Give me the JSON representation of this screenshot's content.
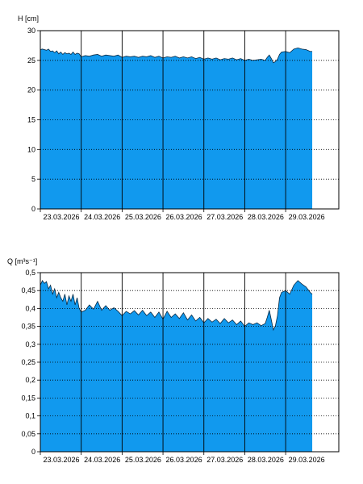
{
  "chart_data": [
    {
      "type": "area",
      "ylabel": "H [cm]",
      "xlabel": "",
      "ylim": [
        0,
        30
      ],
      "yticks": [
        0,
        5,
        10,
        15,
        20,
        25,
        30
      ],
      "xlim": [
        0,
        7.3
      ],
      "xticks": [
        0,
        1,
        2,
        3,
        4,
        5,
        6
      ],
      "xtick_labels": [
        "23.03.2026",
        "24.03.2026",
        "25.03.2026",
        "26.03.2026",
        "27.03.2026",
        "28.03.2026",
        "29.03.2026"
      ],
      "grid": "dotted-horizontal",
      "fill_color": "#1199ee",
      "x": [
        0,
        0.05,
        0.1,
        0.15,
        0.2,
        0.25,
        0.3,
        0.35,
        0.4,
        0.45,
        0.5,
        0.55,
        0.6,
        0.65,
        0.7,
        0.75,
        0.8,
        0.85,
        0.9,
        0.95,
        1.0,
        1.1,
        1.2,
        1.3,
        1.4,
        1.5,
        1.6,
        1.7,
        1.8,
        1.9,
        2.0,
        2.1,
        2.2,
        2.3,
        2.4,
        2.5,
        2.6,
        2.7,
        2.8,
        2.9,
        3.0,
        3.1,
        3.2,
        3.3,
        3.4,
        3.5,
        3.6,
        3.7,
        3.8,
        3.9,
        4.0,
        4.1,
        4.2,
        4.3,
        4.4,
        4.5,
        4.6,
        4.7,
        4.8,
        4.9,
        5.0,
        5.1,
        5.2,
        5.3,
        5.4,
        5.5,
        5.55,
        5.6,
        5.65,
        5.7,
        5.75,
        5.8,
        5.85,
        5.9,
        6.0,
        6.1,
        6.2,
        6.3,
        6.4,
        6.5,
        6.6,
        6.65
      ],
      "values": [
        26.8,
        26.9,
        26.8,
        26.7,
        26.9,
        26.5,
        26.6,
        26.3,
        26.6,
        26.1,
        26.4,
        26.0,
        26.3,
        26.1,
        26.2,
        26.0,
        26.4,
        26.0,
        26.2,
        26.1,
        25.6,
        25.8,
        25.7,
        25.9,
        26.0,
        25.7,
        25.9,
        25.8,
        25.7,
        25.9,
        25.5,
        25.7,
        25.6,
        25.7,
        25.5,
        25.7,
        25.6,
        25.8,
        25.5,
        25.7,
        25.4,
        25.6,
        25.5,
        25.7,
        25.4,
        25.6,
        25.4,
        25.6,
        25.3,
        25.5,
        25.2,
        25.4,
        25.2,
        25.4,
        25.1,
        25.3,
        25.2,
        25.4,
        25.1,
        25.3,
        25.0,
        25.2,
        25.0,
        25.1,
        25.2,
        25.0,
        25.5,
        25.9,
        25.3,
        24.6,
        24.8,
        25.2,
        26.0,
        26.4,
        26.5,
        26.3,
        26.9,
        27.1,
        26.9,
        26.8,
        26.5,
        26.5
      ]
    },
    {
      "type": "area",
      "ylabel": "Q [m³s⁻¹]",
      "xlabel": "",
      "ylim": [
        0,
        0.5
      ],
      "yticks": [
        0,
        0.05,
        0.1,
        0.15,
        0.2,
        0.25,
        0.3,
        0.35,
        0.4,
        0.45,
        0.5
      ],
      "ytick_labels": [
        "0",
        "0,05",
        "0,1",
        "0,15",
        "0,2",
        "0,25",
        "0,3",
        "0,35",
        "0,4",
        "0,45",
        "0,5"
      ],
      "xlim": [
        0,
        7.3
      ],
      "xticks": [
        0,
        1,
        2,
        3,
        4,
        5,
        6
      ],
      "xtick_labels": [
        "23.03.2026",
        "24.03.2026",
        "25.03.2026",
        "26.03.2026",
        "27.03.2026",
        "28.03.2026",
        "29.03.2026"
      ],
      "grid": "dotted-horizontal",
      "fill_color": "#1199ee",
      "x": [
        0,
        0.05,
        0.1,
        0.15,
        0.2,
        0.25,
        0.3,
        0.35,
        0.4,
        0.45,
        0.5,
        0.55,
        0.6,
        0.65,
        0.7,
        0.75,
        0.8,
        0.85,
        0.9,
        0.95,
        1.0,
        1.1,
        1.2,
        1.3,
        1.4,
        1.5,
        1.6,
        1.7,
        1.8,
        1.9,
        2.0,
        2.1,
        2.2,
        2.3,
        2.4,
        2.5,
        2.6,
        2.7,
        2.8,
        2.9,
        3.0,
        3.1,
        3.2,
        3.3,
        3.4,
        3.5,
        3.6,
        3.7,
        3.8,
        3.9,
        4.0,
        4.1,
        4.2,
        4.3,
        4.4,
        4.5,
        4.6,
        4.7,
        4.8,
        4.9,
        5.0,
        5.1,
        5.2,
        5.3,
        5.4,
        5.5,
        5.55,
        5.6,
        5.65,
        5.7,
        5.75,
        5.8,
        5.85,
        5.9,
        6.0,
        6.1,
        6.2,
        6.3,
        6.4,
        6.5,
        6.6,
        6.65
      ],
      "values": [
        0.465,
        0.478,
        0.47,
        0.475,
        0.455,
        0.465,
        0.44,
        0.455,
        0.43,
        0.445,
        0.43,
        0.42,
        0.44,
        0.41,
        0.435,
        0.42,
        0.44,
        0.41,
        0.43,
        0.4,
        0.39,
        0.395,
        0.41,
        0.398,
        0.42,
        0.395,
        0.408,
        0.395,
        0.402,
        0.392,
        0.38,
        0.392,
        0.385,
        0.394,
        0.382,
        0.395,
        0.38,
        0.39,
        0.375,
        0.39,
        0.37,
        0.392,
        0.375,
        0.385,
        0.372,
        0.388,
        0.368,
        0.382,
        0.365,
        0.375,
        0.36,
        0.372,
        0.362,
        0.37,
        0.358,
        0.372,
        0.36,
        0.368,
        0.355,
        0.365,
        0.35,
        0.36,
        0.355,
        0.36,
        0.352,
        0.358,
        0.375,
        0.395,
        0.368,
        0.34,
        0.352,
        0.38,
        0.43,
        0.445,
        0.45,
        0.44,
        0.465,
        0.478,
        0.468,
        0.46,
        0.445,
        0.44
      ]
    }
  ]
}
